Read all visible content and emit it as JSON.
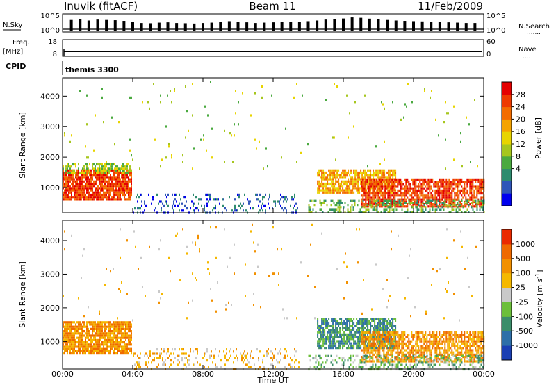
{
  "header": {
    "station": "Inuvik (fitACF)",
    "beam": "Beam 11",
    "date": "11/Feb/2009"
  },
  "cpid": {
    "label": "CPID",
    "value": "themis 3300"
  },
  "chart_data": [
    {
      "type": "bar",
      "name": "noise-panel",
      "labels": {
        "left": "N.Sky",
        "right": "N.Search",
        "right_marker": "......."
      },
      "left_ticks": [
        "10^5",
        "10^0"
      ],
      "right_ticks": [
        "10^5",
        "10^0"
      ],
      "scale": "log",
      "ylim": [
        1,
        100000
      ],
      "x_hours": [
        0.5,
        1.0,
        1.5,
        2.0,
        2.5,
        3.0,
        3.5,
        4.0,
        4.5,
        5.0,
        5.5,
        6.0,
        6.5,
        7.0,
        7.5,
        8.0,
        8.5,
        9.0,
        9.5,
        10.0,
        10.5,
        11.0,
        11.5,
        12.0,
        12.5,
        13.0,
        13.5,
        14.0,
        14.5,
        15.0,
        15.5,
        16.0,
        16.5,
        17.0,
        17.5,
        18.0,
        18.5,
        19.0,
        19.5,
        20.0,
        20.5,
        21.0,
        21.5,
        22.0,
        22.5,
        23.0,
        23.5
      ],
      "values": [
        3000,
        5000,
        2000,
        4000,
        3000,
        2500,
        1500,
        600,
        300,
        250,
        400,
        500,
        300,
        250,
        200,
        300,
        400,
        800,
        1200,
        600,
        500,
        300,
        400,
        500,
        600,
        700,
        900,
        1200,
        2000,
        4000,
        6000,
        9000,
        20000,
        15000,
        8000,
        5000,
        3000,
        2000,
        1500,
        1200,
        1000,
        800,
        600,
        500,
        400,
        300,
        300
      ]
    },
    {
      "type": "line",
      "name": "freq-nave-panel",
      "labels": {
        "left_top": "Freq.",
        "left_bottom": "[MHz]",
        "right": "Nave",
        "right_marker": "...."
      },
      "left_ticks": [
        "18",
        "8"
      ],
      "right_ticks": [
        "60",
        "0"
      ],
      "ylim": [
        8,
        18
      ],
      "freq_mhz": 10.8
    },
    {
      "type": "heatmap",
      "name": "power",
      "ylabel": "Slant Range [km]",
      "yticks": [
        1000,
        2000,
        3000,
        4000
      ],
      "ylim": [
        180,
        4600
      ],
      "colorbar": {
        "title": "Power [dB]",
        "ticks": [
          "28",
          "24",
          "20",
          "16",
          "12",
          "8",
          "4"
        ],
        "colors": [
          "#0000ee",
          "#2f55b8",
          "#2e8b6f",
          "#4aa93f",
          "#a6c61e",
          "#e8d400",
          "#f5a300",
          "#f36d00",
          "#ee3a00",
          "#e40000"
        ]
      },
      "regions": [
        {
          "t0": 0.0,
          "t1": 3.9,
          "r0": 650,
          "r1": 1600,
          "density": 0.85,
          "level": 8
        },
        {
          "t0": 0.0,
          "t1": 3.9,
          "r0": 1500,
          "r1": 1800,
          "density": 0.5,
          "level": 4
        },
        {
          "t0": 4.0,
          "t1": 13.5,
          "r0": 200,
          "r1": 800,
          "density": 0.2,
          "level": 1
        },
        {
          "t0": 14.5,
          "t1": 19.0,
          "r0": 800,
          "r1": 1600,
          "density": 0.75,
          "level": 6
        },
        {
          "t0": 17.0,
          "t1": 24.0,
          "r0": 400,
          "r1": 1300,
          "density": 0.75,
          "level": 8
        },
        {
          "t0": 14.0,
          "t1": 24.0,
          "r0": 200,
          "r1": 600,
          "density": 0.35,
          "level": 3
        },
        {
          "t0": 0.0,
          "t1": 24.0,
          "r0": 1600,
          "r1": 4500,
          "density": 0.012,
          "level": 4
        }
      ]
    },
    {
      "type": "heatmap",
      "name": "velocity",
      "ylabel": "Slant Range [km]",
      "xlabel": "Time UT",
      "xticks": [
        "00:00",
        "04:00",
        "08:00",
        "12:00",
        "16:00",
        "20:00",
        "00:00"
      ],
      "xlim": [
        0,
        24
      ],
      "yticks": [
        1000,
        2000,
        3000,
        4000
      ],
      "ylim": [
        180,
        4600
      ],
      "colorbar": {
        "title": "Velocity [m s",
        "title_superscript": "-1",
        "title_close": "]",
        "ticks": [
          "1000",
          "500",
          "100",
          "25",
          "-25",
          "-100",
          "-500",
          "-1000"
        ],
        "colors": [
          "#1b3fb3",
          "#2e6fa8",
          "#3b8d6a",
          "#6cbf3a",
          "#c9c9c9",
          "#f5b800",
          "#f29000",
          "#ef6a00",
          "#ea2a00"
        ]
      },
      "regions": [
        {
          "t0": 0.0,
          "t1": 3.9,
          "r0": 650,
          "r1": 1600,
          "density": 0.85,
          "level": 6
        },
        {
          "t0": 14.5,
          "t1": 19.0,
          "r0": 800,
          "r1": 1700,
          "density": 0.75,
          "level": 2
        },
        {
          "t0": 17.0,
          "t1": 24.0,
          "r0": 400,
          "r1": 1300,
          "density": 0.7,
          "level": 6
        },
        {
          "t0": 4.0,
          "t1": 13.5,
          "r0": 200,
          "r1": 800,
          "density": 0.2,
          "level": 5
        },
        {
          "t0": 14.0,
          "t1": 24.0,
          "r0": 200,
          "r1": 600,
          "density": 0.3,
          "level": 3
        },
        {
          "t0": 0.0,
          "t1": 24.0,
          "r0": 1600,
          "r1": 4500,
          "density": 0.012,
          "level": 5
        }
      ]
    }
  ]
}
